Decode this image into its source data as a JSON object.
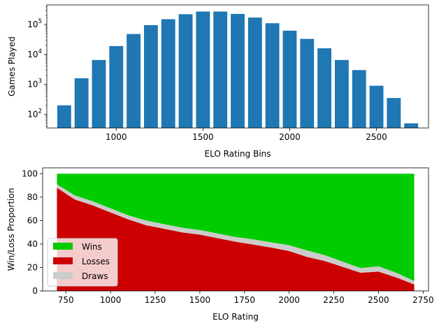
{
  "chart_data": [
    {
      "type": "bar",
      "xlabel": "ELO Rating Bins",
      "ylabel": "Games Played",
      "yscale": "log",
      "xlim": [
        600,
        2800
      ],
      "ylim": [
        35,
        450000
      ],
      "xticks": [
        1000,
        1500,
        2000,
        2500
      ],
      "yticks": [
        100,
        1000,
        10000,
        100000
      ],
      "ytick_labels": [
        {
          "base": "10",
          "exp": "2"
        },
        {
          "base": "10",
          "exp": "3"
        },
        {
          "base": "10",
          "exp": "4"
        },
        {
          "base": "10",
          "exp": "5"
        }
      ],
      "bar_color": "#1f77b4",
      "bar_width": 80,
      "x": [
        700,
        800,
        900,
        1000,
        1100,
        1200,
        1300,
        1400,
        1500,
        1600,
        1700,
        1800,
        1900,
        2000,
        2100,
        2200,
        2300,
        2400,
        2500,
        2600,
        2700
      ],
      "values": [
        200,
        1600,
        6500,
        19000,
        48000,
        95000,
        150000,
        220000,
        270000,
        270000,
        225000,
        170000,
        110000,
        62000,
        33000,
        16000,
        6500,
        3000,
        900,
        350,
        50
      ]
    },
    {
      "type": "area",
      "stacked": true,
      "xlabel": "ELO Rating",
      "ylabel": "Win/Loss Proportion",
      "xlim": [
        620,
        2780
      ],
      "ylim": [
        0,
        105
      ],
      "xticks": [
        750,
        1000,
        1250,
        1500,
        1750,
        2000,
        2250,
        2500,
        2750
      ],
      "yticks": [
        0,
        20,
        40,
        60,
        80,
        100
      ],
      "legend_position": "lower-left",
      "x": [
        700,
        800,
        900,
        1000,
        1100,
        1200,
        1300,
        1400,
        1500,
        1600,
        1700,
        1800,
        1900,
        2000,
        2100,
        2200,
        2300,
        2400,
        2500,
        2600,
        2700
      ],
      "series": [
        {
          "name": "Losses",
          "color": "#cc0000",
          "values": [
            88,
            78,
            73,
            67,
            61,
            56,
            53,
            50,
            48,
            45,
            42,
            39.5,
            37,
            34,
            29,
            25.5,
            20.5,
            15.5,
            16.5,
            11.5,
            5.5
          ]
        },
        {
          "name": "Draws",
          "color": "#cccccc",
          "values": [
            3,
            3.5,
            3.5,
            3.5,
            3.5,
            4,
            4,
            4,
            4,
            4,
            4,
            4.5,
            4.5,
            5,
            5.5,
            5,
            4.5,
            4,
            4.5,
            4,
            3
          ]
        },
        {
          "name": "Wins",
          "color": "#00cc00",
          "values": [
            9,
            18.5,
            23.5,
            29.5,
            35.5,
            40,
            43,
            46,
            48,
            51,
            54,
            56,
            58.5,
            61,
            65.5,
            69.5,
            75,
            80.5,
            79,
            84.5,
            91.5
          ]
        }
      ],
      "legend_order": [
        "Wins",
        "Losses",
        "Draws"
      ]
    }
  ]
}
